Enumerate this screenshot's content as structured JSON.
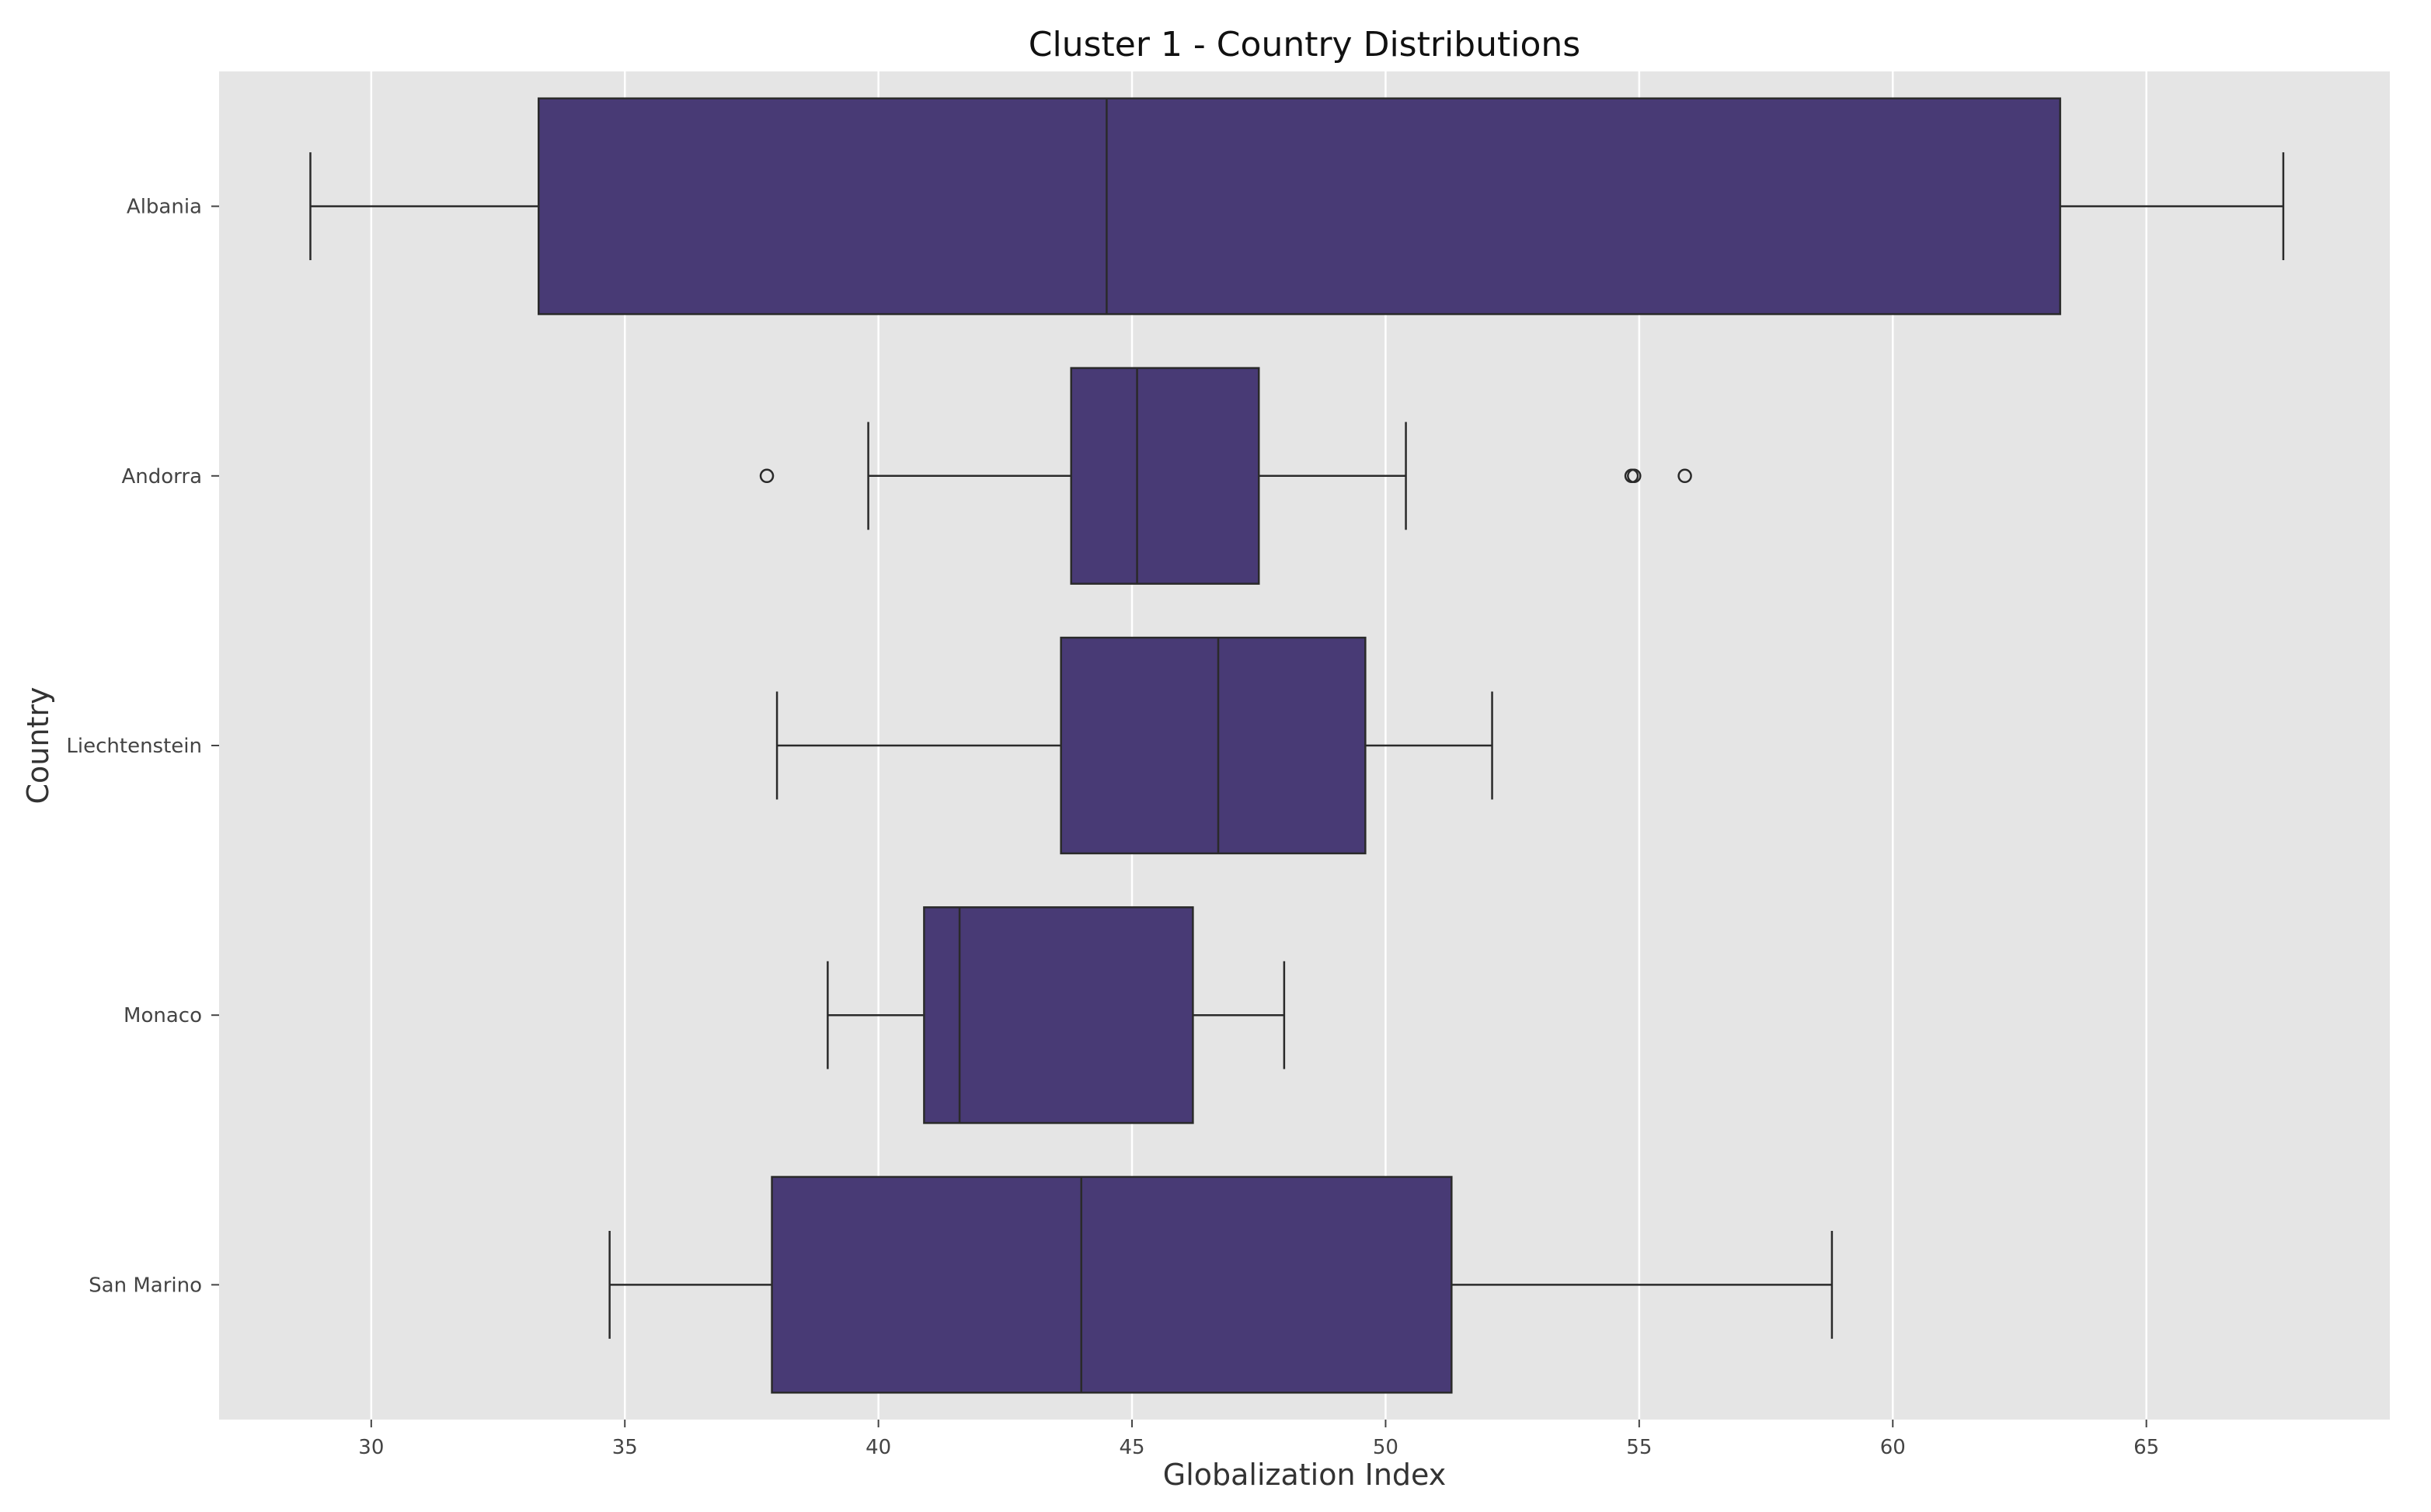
{
  "chart_data": {
    "type": "boxplot",
    "orientation": "horizontal",
    "title": "Cluster 1 - Country Distributions",
    "xlabel": "Globalization Index",
    "ylabel": "Country",
    "xlim": [
      27.0,
      69.8
    ],
    "xticks": [
      30,
      35,
      40,
      45,
      50,
      55,
      60,
      65
    ],
    "grid": true,
    "box_color": "#483a75",
    "background_color": "#e5e5e5",
    "categories": [
      "Albania",
      "Andorra",
      "Liechtenstein",
      "Monaco",
      "San Marino"
    ],
    "boxes": [
      {
        "label": "Albania",
        "whislo": 28.8,
        "q1": 33.3,
        "median": 44.5,
        "q3": 63.3,
        "whishi": 67.7,
        "outliers": []
      },
      {
        "label": "Andorra",
        "whislo": 39.8,
        "q1": 43.8,
        "median": 45.1,
        "q3": 47.5,
        "whishi": 50.4,
        "outliers": [
          37.8,
          54.85,
          54.9,
          55.9
        ]
      },
      {
        "label": "Liechtenstein",
        "whislo": 38.0,
        "q1": 43.6,
        "median": 46.7,
        "q3": 49.6,
        "whishi": 52.1,
        "outliers": []
      },
      {
        "label": "Monaco",
        "whislo": 39.0,
        "q1": 40.9,
        "median": 41.6,
        "q3": 46.2,
        "whishi": 48.0,
        "outliers": []
      },
      {
        "label": "San Marino",
        "whislo": 34.7,
        "q1": 37.9,
        "median": 44.0,
        "q3": 51.3,
        "whishi": 58.8,
        "outliers": []
      }
    ]
  }
}
